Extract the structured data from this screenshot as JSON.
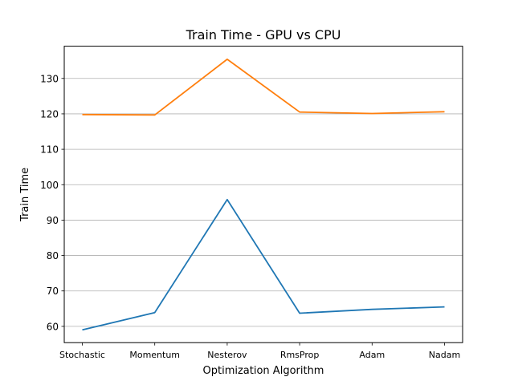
{
  "chart_data": {
    "type": "line",
    "title": "Train Time - GPU vs CPU",
    "xlabel": "Optimization Algorithm",
    "ylabel": "Train Time",
    "categories": [
      "Stochastic",
      "Momentum",
      "Nesterov",
      "RmsProp",
      "Adam",
      "Nadam"
    ],
    "ylim": [
      55.4,
      139.1
    ],
    "yticks": [
      60,
      70,
      80,
      90,
      100,
      110,
      120,
      130
    ],
    "grid": "horizontal",
    "series": [
      {
        "color": "#1f77b4",
        "values": [
          59.0,
          63.9,
          95.8,
          63.7,
          64.8,
          65.5
        ]
      },
      {
        "color": "#ff7f0e",
        "values": [
          119.8,
          119.7,
          135.4,
          120.5,
          120.1,
          120.6
        ]
      }
    ]
  }
}
